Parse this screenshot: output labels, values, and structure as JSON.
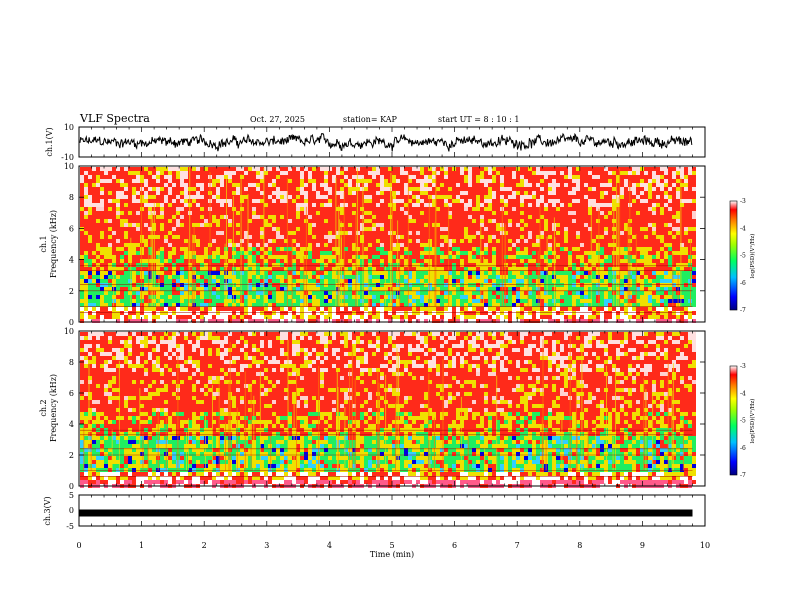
{
  "header": {
    "title": "VLF Spectra",
    "date": "Oct. 27, 2025",
    "station": "station= KAP",
    "start": "start  UT  =   8  : 10 : 1"
  },
  "chart_data": [
    {
      "type": "line",
      "name": "ch.1 waveform",
      "ylabel": "ch.1(V)",
      "ylim": [
        -10,
        10
      ],
      "yticks": [
        "10",
        "-10"
      ],
      "xlim": [
        0,
        10
      ],
      "description": "noisy waveform oscillating roughly between -5 and 5 V"
    },
    {
      "type": "heatmap",
      "name": "ch.1 spectrogram",
      "ylabel_top": "ch.1",
      "ylabel": "Frequency  (kHz)",
      "ylim": [
        0,
        10
      ],
      "yticks": [
        "0",
        "2",
        "4",
        "6",
        "8",
        "10"
      ],
      "data_end_min": 9.8,
      "colorbar": {
        "label": "log(PSD)(V²/Hz)",
        "range": [
          -7,
          -3
        ],
        "ticks": [
          "-3",
          "-4",
          "-5",
          "-6",
          "-7"
        ]
      }
    },
    {
      "type": "heatmap",
      "name": "ch.2 spectrogram",
      "ylabel_top": "ch.2",
      "ylabel": "Frequency  (kHz)",
      "ylim": [
        0,
        10
      ],
      "yticks": [
        "0",
        "2",
        "4",
        "6",
        "8",
        "10"
      ],
      "data_end_min": 9.8,
      "colorbar": {
        "label": "log(PSD)(V²/Hz)",
        "range": [
          -7,
          -3
        ],
        "ticks": [
          "-3",
          "-4",
          "-5",
          "-6",
          "-7"
        ]
      }
    },
    {
      "type": "line",
      "name": "ch.3 waveform",
      "ylabel": "ch.3(V)",
      "ylim": [
        -5,
        5
      ],
      "yticks": [
        "5",
        "0",
        "-5"
      ],
      "value": -0.8,
      "xlim": [
        0,
        10
      ]
    }
  ],
  "xaxis": {
    "label": "Time  (min)",
    "range": [
      0,
      10
    ],
    "ticks": [
      "0",
      "1",
      "2",
      "3",
      "4",
      "5",
      "6",
      "7",
      "8",
      "9",
      "10"
    ]
  },
  "colors": {
    "spec_high": "#ff2a1a",
    "spec_mid": "#f0e000",
    "spec_low": "#20ee60",
    "spec_lowest": "#0000e0"
  }
}
